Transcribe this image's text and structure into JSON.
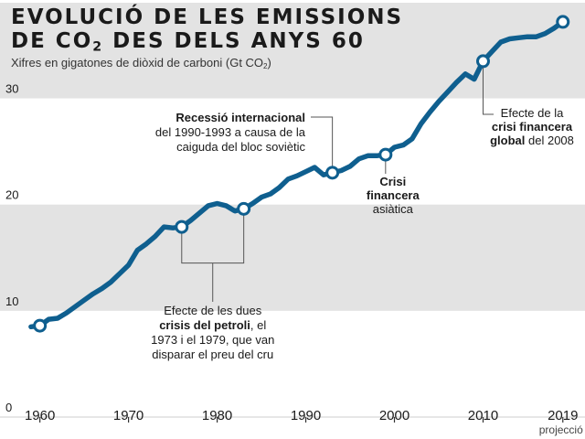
{
  "header": {
    "title_line1": "EVOLUCIÓ DE LES EMISSIONS",
    "title_line2_pre": "DE CO",
    "title_line2_sub": "2",
    "title_line2_post": " DES DELS ANYS 60",
    "subtitle_pre": "Xifres en gigatones de diòxid de carboni (Gt CO",
    "subtitle_sub": "2",
    "subtitle_post": ")"
  },
  "colors": {
    "line": "#0f5f8f",
    "band": "#e3e3e3",
    "text": "#1a1a1a",
    "leader": "#555555"
  },
  "chart_data": {
    "type": "line",
    "x_ticks": [
      1960,
      1970,
      1980,
      1990,
      2000,
      2010,
      2019
    ],
    "x_tick_labels": [
      "1960",
      "1970",
      "1980",
      "1990",
      "2000",
      "2010",
      "2019"
    ],
    "x_note": "projecció",
    "y_ticks": [
      0,
      10,
      20,
      30
    ],
    "y_tick_labels": [
      "0",
      "10",
      "20",
      "30"
    ],
    "xlim": [
      1955.5,
      2021.5
    ],
    "ylim": [
      0,
      39
    ],
    "grid": "alternating horizontal bands",
    "series": [
      {
        "x": [
          1959,
          1960,
          1961,
          1962,
          1963,
          1964,
          1965,
          1966,
          1967,
          1968,
          1969,
          1970,
          1971,
          1972,
          1973,
          1974,
          1975,
          1976,
          1977,
          1978,
          1979,
          1980,
          1981,
          1982,
          1983,
          1984,
          1985,
          1986,
          1987,
          1988,
          1989,
          1990,
          1991,
          1992,
          1993,
          1994,
          1995,
          1996,
          1997,
          1998,
          1999,
          2000,
          2001,
          2002,
          2003,
          2004,
          2005,
          2006,
          2007,
          2008,
          2009,
          2010,
          2011,
          2012,
          2013,
          2014,
          2015,
          2016,
          2017,
          2018,
          2019
        ],
        "y": [
          8.5,
          8.6,
          9.2,
          9.3,
          9.8,
          10.4,
          11.0,
          11.6,
          12.1,
          12.7,
          13.5,
          14.3,
          15.7,
          16.3,
          17.0,
          17.9,
          17.8,
          17.9,
          18.5,
          19.2,
          19.9,
          20.1,
          19.9,
          19.4,
          19.6,
          20.1,
          20.7,
          21.0,
          21.6,
          22.4,
          22.7,
          23.1,
          23.5,
          22.8,
          23.0,
          23.2,
          23.6,
          24.3,
          24.6,
          24.6,
          24.7,
          25.4,
          25.6,
          26.2,
          27.6,
          28.7,
          29.7,
          30.6,
          31.5,
          32.3,
          31.8,
          33.5,
          34.4,
          35.3,
          35.6,
          35.7,
          35.8,
          35.8,
          36.1,
          36.6,
          37.2
        ]
      }
    ],
    "highlight_points": [
      {
        "x": 1960,
        "y": 8.6
      },
      {
        "x": 1976,
        "y": 17.9
      },
      {
        "x": 1983,
        "y": 19.6
      },
      {
        "x": 1993,
        "y": 23.0
      },
      {
        "x": 1999,
        "y": 24.7
      },
      {
        "x": 2010,
        "y": 33.5
      },
      {
        "x": 2019,
        "y": 37.2
      }
    ],
    "annotations": {
      "recession": {
        "bold": "Recessió internacional",
        "lines": [
          "del 1990-1993 a causa de la",
          "caiguda del bloc soviètic"
        ]
      },
      "asian": {
        "bold_lines": [
          "Crisi",
          "financera"
        ],
        "lines": [
          "asiàtica"
        ]
      },
      "global": {
        "lines_before": [
          "Efecte de la"
        ],
        "bold_line": "crisi financera",
        "last_bold": "global",
        "last_rest": " del 2008"
      },
      "oil": {
        "line1": "Efecte de les dues",
        "bold": "crisis del petroli",
        "bold_after": ", el",
        "lines": [
          "1973 i el 1979, que van",
          "disparar el preu del cru"
        ]
      }
    }
  }
}
